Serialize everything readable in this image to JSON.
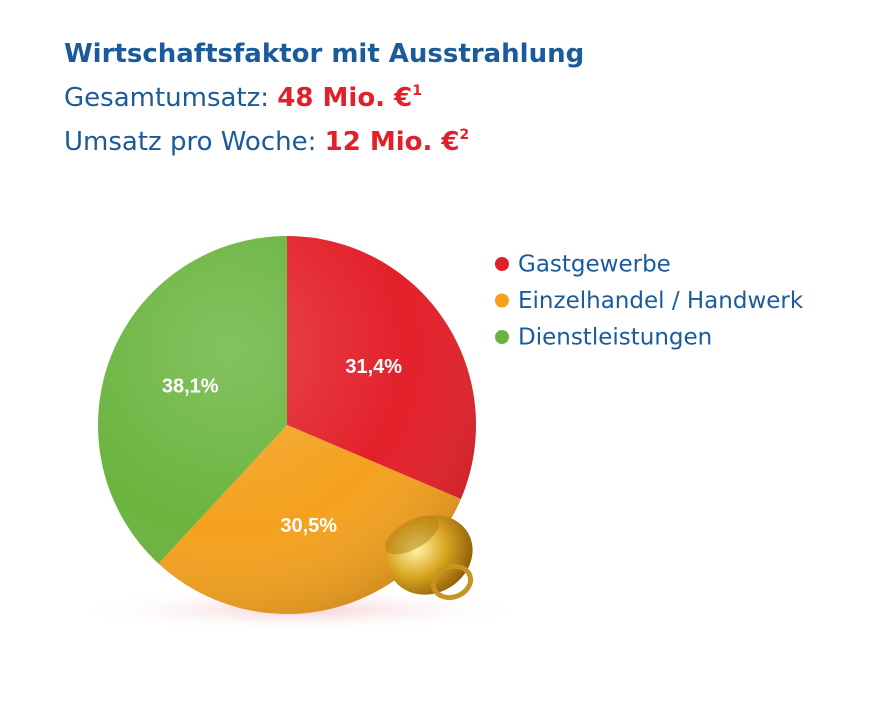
{
  "chart_data": {
    "type": "pie",
    "title": "Wirtschaftsfaktor mit Ausstrahlung",
    "subtitles": [
      {
        "label": "Gesamtumsatz:",
        "value": "48 Mio. €",
        "footnote": "1"
      },
      {
        "label": "Umsatz pro Woche:",
        "value": "12 Mio. €",
        "footnote": "2"
      }
    ],
    "categories": [
      "Gastgewerbe",
      "Einzelhandel / Handwerk",
      "Dienstleistungen"
    ],
    "values": [
      31.4,
      30.5,
      38.1
    ],
    "value_labels": [
      "31,4%",
      "30,5%",
      "38,1%"
    ],
    "colors": [
      "#e3202a",
      "#f4a11e",
      "#6ab43e"
    ]
  }
}
